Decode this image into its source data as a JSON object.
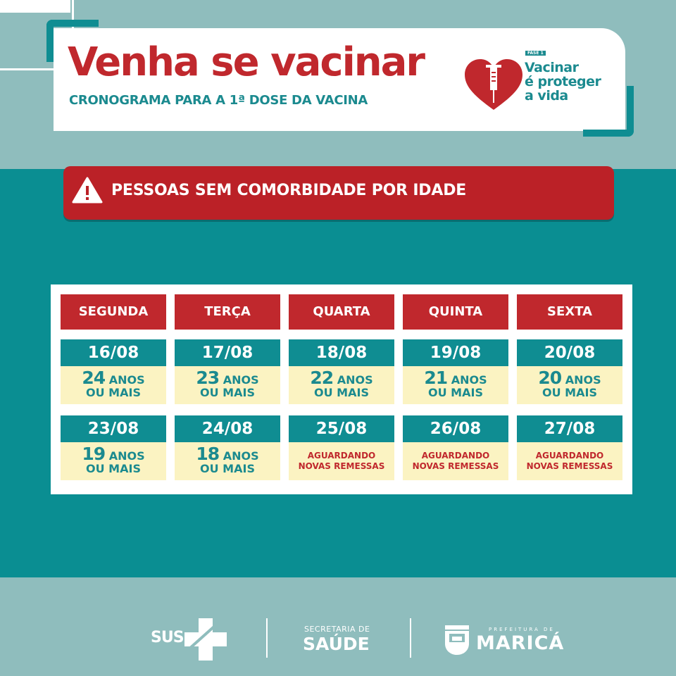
{
  "header": {
    "title": "Venha se vacinar",
    "subtitle": "CRONOGRAMA PARA A 1ª DOSE DA VACINA",
    "campaign": {
      "badge": "FASE 1",
      "slogan_lines": [
        "Vacinar",
        "é proteger",
        "a vida"
      ],
      "icon": "heart-syringe-icon"
    }
  },
  "alert": {
    "icon": "warning-icon",
    "text": "PESSOAS SEM COMORBIDADE POR IDADE"
  },
  "schedule": {
    "days": [
      "SEGUNDA",
      "TERÇA",
      "QUARTA",
      "QUINTA",
      "SEXTA"
    ],
    "weeks": [
      [
        {
          "date": "16/08",
          "age": "24",
          "unit": "ANOS",
          "suffix": "OU MAIS"
        },
        {
          "date": "17/08",
          "age": "23",
          "unit": "ANOS",
          "suffix": "OU MAIS"
        },
        {
          "date": "18/08",
          "age": "22",
          "unit": "ANOS",
          "suffix": "OU MAIS"
        },
        {
          "date": "19/08",
          "age": "21",
          "unit": "ANOS",
          "suffix": "OU MAIS"
        },
        {
          "date": "20/08",
          "age": "20",
          "unit": "ANOS",
          "suffix": "OU MAIS"
        }
      ],
      [
        {
          "date": "23/08",
          "age": "19",
          "unit": "ANOS",
          "suffix": "OU MAIS"
        },
        {
          "date": "24/08",
          "age": "18",
          "unit": "ANOS",
          "suffix": "OU MAIS"
        },
        {
          "date": "25/08",
          "status_lines": [
            "AGUARDANDO",
            "NOVAS REMESSAS"
          ]
        },
        {
          "date": "26/08",
          "status_lines": [
            "AGUARDANDO",
            "NOVAS REMESSAS"
          ]
        },
        {
          "date": "27/08",
          "status_lines": [
            "AGUARDANDO",
            "NOVAS REMESSAS"
          ]
        }
      ]
    ]
  },
  "footer": {
    "sus": "SUS",
    "secretaria_small": "SECRETARIA DE",
    "secretaria_big": "SAÚDE",
    "prefeitura_small": "PREFEITURA DE",
    "prefeitura_big": "MARICÁ"
  },
  "colors": {
    "red": "#c0282d",
    "teal": "#0a8e92",
    "light_teal": "#8fbdbd",
    "cream": "#fbf3c2"
  }
}
